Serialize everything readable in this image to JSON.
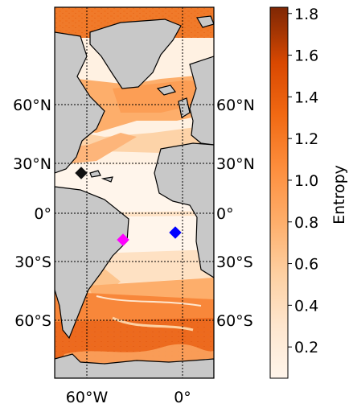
{
  "map": {
    "lat_labels": [
      "60°N",
      "30°N",
      "0°",
      "30°S",
      "60°S"
    ],
    "lon_labels": [
      "60°W",
      "0°"
    ],
    "markers": [
      {
        "name": "black-diamond-marker",
        "color": "#111111"
      },
      {
        "name": "magenta-diamond-marker",
        "color": "#ff00ff"
      },
      {
        "name": "blue-diamond-marker",
        "color": "#0000ff"
      }
    ],
    "land_color": "#c8c8c8",
    "ocean_low_color": "#fff5eb",
    "ocean_high_color": "#7f2704"
  },
  "colorbar": {
    "label": "Entropy",
    "ticks": [
      "0.2",
      "0.4",
      "0.6",
      "0.8",
      "1.0",
      "1.2",
      "1.4",
      "1.6",
      "1.8"
    ],
    "vmin": 0.05,
    "vmax": 1.83,
    "colormap": "Oranges"
  }
}
